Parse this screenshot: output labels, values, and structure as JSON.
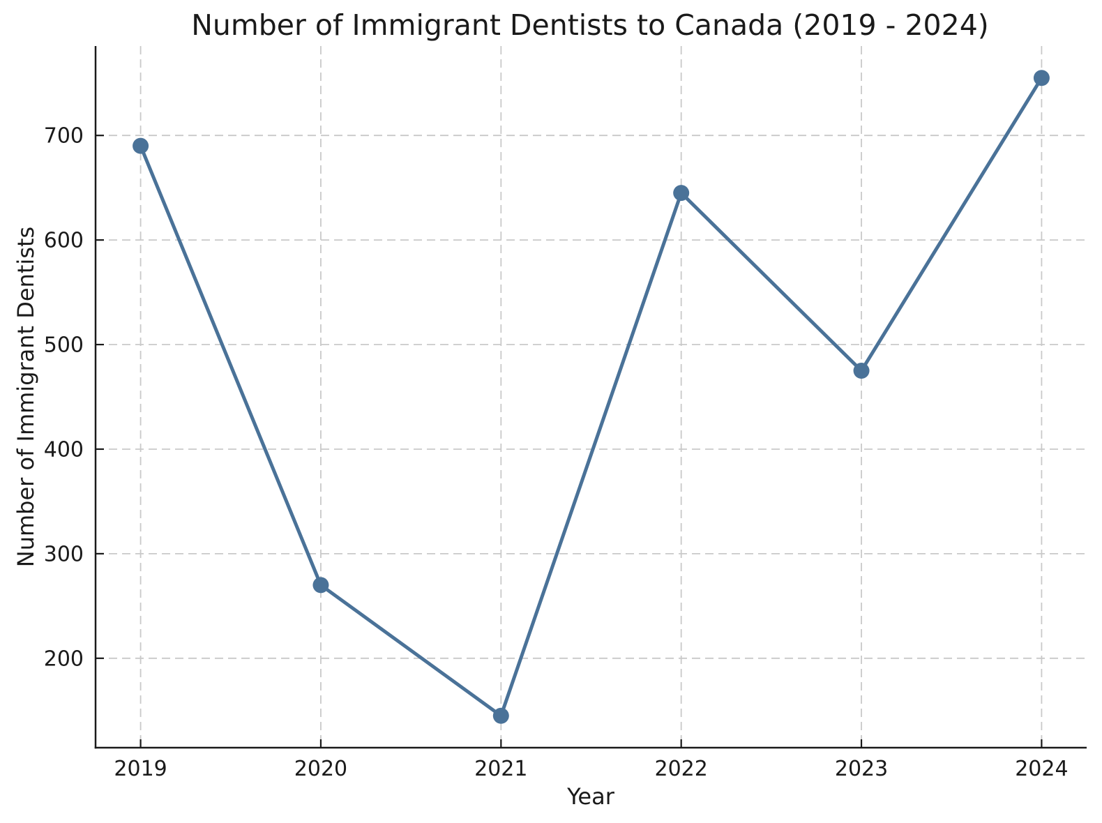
{
  "chart_data": {
    "type": "line",
    "title": "Number of Immigrant Dentists to Canada (2019 - 2024)",
    "xlabel": "Year",
    "ylabel": "Number of Immigrant Dentists",
    "x": [
      2019,
      2020,
      2021,
      2022,
      2023,
      2024
    ],
    "series": [
      {
        "name": "Immigrant Dentists",
        "values": [
          690,
          270,
          145,
          645,
          475,
          755
        ]
      }
    ],
    "xticks": [
      2019,
      2020,
      2021,
      2022,
      2023,
      2024
    ],
    "yticks": [
      200,
      300,
      400,
      500,
      600,
      700
    ],
    "xlim": [
      2018.75,
      2024.25
    ],
    "ylim": [
      114.5,
      785.5
    ],
    "grid": true,
    "grid_style": "dashed",
    "legend": false,
    "marker": "circle",
    "colors": {
      "line": "#4a7298",
      "marker": "#4a7298",
      "grid": "#c9c9c9",
      "axis": "#1a1a1a",
      "text": "#1a1a1a",
      "background": "#ffffff"
    }
  }
}
